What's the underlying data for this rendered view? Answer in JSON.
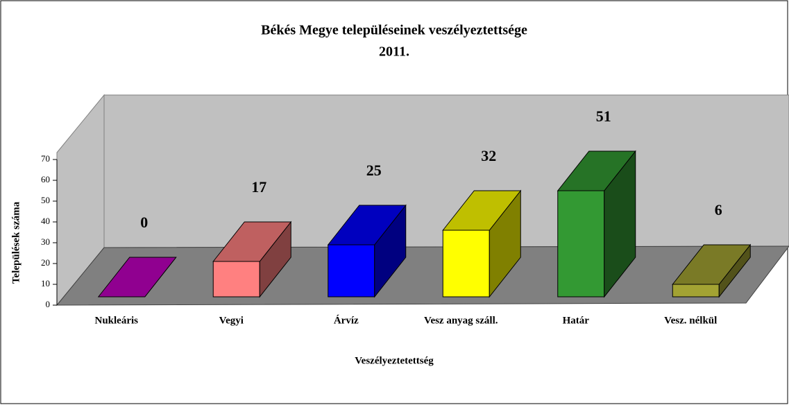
{
  "chart_data": {
    "type": "bar3d",
    "title": "Békés Megye településeinek veszélyeztettsége",
    "subtitle": "2011.",
    "x_label": "Veszélyeztetettség",
    "y_label": "Települések száma",
    "categories": [
      "Nukleáris",
      "Vegyi",
      "Árvíz",
      "Vesz anyag száll.",
      "Határ",
      "Vesz. nélkül"
    ],
    "values": [
      0,
      17,
      25,
      32,
      51,
      6
    ],
    "colors": [
      "#c000c0",
      "#ff8080",
      "#0000ff",
      "#ffff00",
      "#339933",
      "#a3a333"
    ],
    "ylim": [
      0,
      70
    ],
    "yticks": [
      0,
      10,
      20,
      30,
      40,
      50,
      60,
      70
    ]
  }
}
